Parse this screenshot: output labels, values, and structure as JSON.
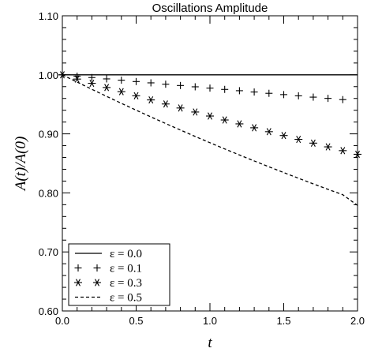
{
  "chart_data": {
    "type": "line",
    "title": "Oscillations Amplitude",
    "xlabel": "t",
    "ylabel": "A(t)/A(0)",
    "xlim": [
      0.0,
      2.0
    ],
    "ylim": [
      0.6,
      1.1
    ],
    "xticks": [
      "0.0",
      "0.5",
      "1.0",
      "1.5",
      "2.0"
    ],
    "yticks": [
      "0.60",
      "0.70",
      "0.80",
      "0.90",
      "1.00",
      "1.10"
    ],
    "grid": false,
    "legend_position": "bottom-left",
    "series": [
      {
        "name": "ε = 0.0",
        "style": "solid",
        "x": [
          0.0,
          2.0
        ],
        "y": [
          1.0,
          1.0
        ]
      },
      {
        "name": "ε = 0.1",
        "style": "plus",
        "x": [
          0.0,
          0.1,
          0.2,
          0.3,
          0.4,
          0.5,
          0.6,
          0.7,
          0.8,
          0.9,
          1.0,
          1.1,
          1.2,
          1.3,
          1.4,
          1.5,
          1.6,
          1.7,
          1.8,
          1.9
        ],
        "y": [
          1.0,
          0.9977,
          0.9954,
          0.9931,
          0.9909,
          0.9886,
          0.9864,
          0.9841,
          0.9819,
          0.9797,
          0.9775,
          0.9753,
          0.9731,
          0.9709,
          0.9687,
          0.9665,
          0.9644,
          0.9622,
          0.9601,
          0.958
        ]
      },
      {
        "name": "ε = 0.3",
        "style": "asterisk",
        "x": [
          0.0,
          0.1,
          0.2,
          0.3,
          0.4,
          0.5,
          0.6,
          0.7,
          0.8,
          0.9,
          1.0,
          1.1,
          1.2,
          1.3,
          1.4,
          1.5,
          1.6,
          1.7,
          1.8,
          1.9,
          2.0
        ],
        "y": [
          1.0,
          0.9928,
          0.9856,
          0.9785,
          0.9715,
          0.9645,
          0.9575,
          0.9506,
          0.9438,
          0.937,
          0.9302,
          0.9235,
          0.9169,
          0.9103,
          0.9037,
          0.8972,
          0.8907,
          0.8843,
          0.878,
          0.8716,
          0.8654
        ]
      },
      {
        "name": "ε = 0.5",
        "style": "dashed",
        "x": [
          0.0,
          0.1,
          0.2,
          0.3,
          0.4,
          0.5,
          0.6,
          0.7,
          0.8,
          0.9,
          1.0,
          1.1,
          1.2,
          1.3,
          1.4,
          1.5,
          1.6,
          1.7,
          1.8,
          1.9,
          2.0
        ],
        "y": [
          1.0,
          0.9877,
          0.9755,
          0.9635,
          0.9517,
          0.9401,
          0.9287,
          0.9175,
          0.9065,
          0.8956,
          0.885,
          0.8745,
          0.8642,
          0.8541,
          0.8442,
          0.8344,
          0.8248,
          0.8153,
          0.806,
          0.7969,
          0.7788
        ]
      }
    ]
  }
}
